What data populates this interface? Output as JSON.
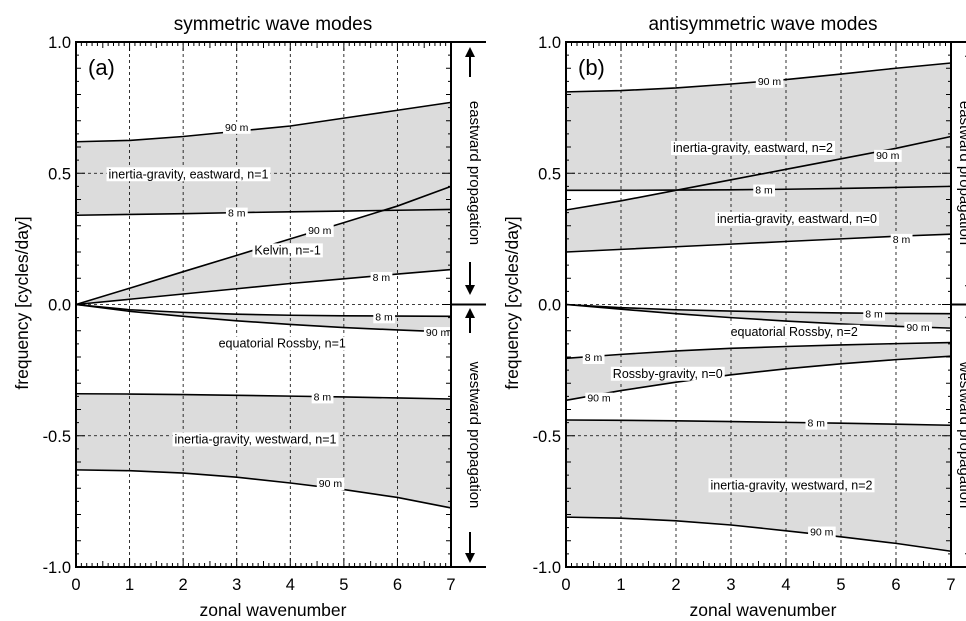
{
  "chart_data": [
    {
      "type": "line",
      "title": "symmetric wave modes",
      "panel_label": "(a)",
      "xlabel": "zonal wavenumber",
      "ylabel": "frequency [cycles/day]",
      "xlim": [
        0,
        7
      ],
      "ylim": [
        -1.0,
        1.0
      ],
      "x_ticks": [
        "0",
        "1",
        "2",
        "3",
        "4",
        "5",
        "6",
        "7"
      ],
      "y_ticks": [
        "1.0",
        "0.5",
        "0.0",
        "-0.5",
        "-1.0"
      ],
      "grid": "dashed",
      "side_labels": {
        "top": "eastward propagation",
        "bottom": "westward propagation"
      },
      "bands": [
        {
          "label": "inertia-gravity, eastward, n=1",
          "label_at": [
            2.1,
            0.5
          ],
          "upper": {
            "label": "90 m",
            "label_at": [
              3.0,
              0.677
            ],
            "x": [
              0,
              1,
              2,
              3,
              4,
              5,
              6,
              7
            ],
            "y": [
              0.62,
              0.625,
              0.64,
              0.66,
              0.68,
              0.71,
              0.74,
              0.77
            ]
          },
          "lower": {
            "label": "8 m",
            "label_at": [
              3.0,
              0.35
            ],
            "x": [
              0,
              1,
              2,
              3,
              4,
              5,
              6,
              7
            ],
            "y": [
              0.34,
              0.343,
              0.346,
              0.35,
              0.353,
              0.356,
              0.359,
              0.362
            ]
          }
        },
        {
          "label": "Kelvin, n=-1",
          "label_at": [
            3.95,
            0.21
          ],
          "upper": {
            "label": "90 m",
            "label_at": [
              4.55,
              0.284
            ],
            "x": [
              0,
              1,
              2,
              3,
              4,
              5,
              6,
              7
            ],
            "y": [
              0,
              0.062,
              0.125,
              0.187,
              0.25,
              0.312,
              0.375,
              0.45
            ]
          },
          "lower": {
            "label": "8 m",
            "label_at": [
              5.7,
              0.105
            ],
            "x": [
              0,
              1,
              2,
              3,
              4,
              5,
              6,
              7
            ],
            "y": [
              0,
              0.02,
              0.04,
              0.06,
              0.08,
              0.098,
              0.116,
              0.133
            ]
          }
        },
        {
          "label": "equatorial Rossby, n=1",
          "label_at": [
            3.85,
            -0.145
          ],
          "upper": {
            "label": "8 m",
            "label_at": [
              5.75,
              -0.045
            ],
            "x": [
              0,
              1,
              2,
              3,
              4,
              5,
              6,
              7
            ],
            "y": [
              0,
              -0.02,
              -0.03,
              -0.037,
              -0.041,
              -0.043,
              -0.044,
              -0.045
            ]
          },
          "lower": {
            "label": "90 m",
            "label_at": [
              6.75,
              -0.105
            ],
            "x": [
              0,
              1,
              2,
              3,
              4,
              5,
              6,
              7
            ],
            "y": [
              0,
              -0.026,
              -0.045,
              -0.062,
              -0.076,
              -0.088,
              -0.097,
              -0.105
            ]
          }
        },
        {
          "label": "inertia-gravity, westward, n=1",
          "label_at": [
            3.35,
            -0.51
          ],
          "upper": {
            "label": "8 m",
            "label_at": [
              4.6,
              -0.35
            ],
            "x": [
              0,
              1,
              2,
              3,
              4,
              5,
              6,
              7
            ],
            "y": [
              -0.34,
              -0.341,
              -0.343,
              -0.346,
              -0.349,
              -0.352,
              -0.356,
              -0.36
            ]
          },
          "lower": {
            "label": "90 m",
            "label_at": [
              4.75,
              -0.68
            ],
            "x": [
              0,
              1,
              2,
              3,
              4,
              5,
              6,
              7
            ],
            "y": [
              -0.63,
              -0.633,
              -0.642,
              -0.658,
              -0.68,
              -0.705,
              -0.735,
              -0.775
            ]
          }
        }
      ]
    },
    {
      "type": "line",
      "title": "antisymmetric wave modes",
      "panel_label": "(b)",
      "xlabel": "zonal wavenumber",
      "ylabel": "frequency [cycles/day]",
      "xlim": [
        0,
        7
      ],
      "ylim": [
        -1.0,
        1.0
      ],
      "x_ticks": [
        "0",
        "1",
        "2",
        "3",
        "4",
        "5",
        "6",
        "7"
      ],
      "y_ticks": [
        "1.0",
        "0.5",
        "0.0",
        "-0.5",
        "-1.0"
      ],
      "grid": "dashed",
      "side_labels": {
        "top": "eastward propagation",
        "bottom": "westward propagation"
      },
      "bands": [
        {
          "label": "inertia-gravity, eastward, n=2",
          "label_at": [
            3.4,
            0.6
          ],
          "upper": {
            "label": "90 m",
            "label_at": [
              3.7,
              0.852
            ],
            "x": [
              0,
              1,
              2,
              3,
              4,
              5,
              6,
              7
            ],
            "y": [
              0.81,
              0.815,
              0.825,
              0.84,
              0.857,
              0.878,
              0.9,
              0.92
            ]
          },
          "lower": {
            "label": "8 m",
            "label_at": [
              3.6,
              0.438
            ],
            "x": [
              0,
              1,
              2,
              3,
              4,
              5,
              6,
              7
            ],
            "y": [
              0.435,
              0.435,
              0.436,
              0.437,
              0.439,
              0.442,
              0.446,
              0.45
            ]
          }
        },
        {
          "label": "inertia-gravity, eastward, n=0",
          "label_at": [
            4.2,
            0.33
          ],
          "upper": {
            "label": "90 m",
            "label_at": [
              5.85,
              0.57
            ],
            "x": [
              0,
              1,
              2,
              3,
              4,
              5,
              6,
              7
            ],
            "y": [
              0.36,
              0.395,
              0.435,
              0.475,
              0.515,
              0.555,
              0.595,
              0.64
            ]
          },
          "lower": {
            "label": "8 m",
            "label_at": [
              6.1,
              0.25
            ],
            "x": [
              0,
              1,
              2,
              3,
              4,
              5,
              6,
              7
            ],
            "y": [
              0.2,
              0.21,
              0.22,
              0.23,
              0.24,
              0.25,
              0.26,
              0.268
            ]
          }
        },
        {
          "label": "equatorial Rossby, n=2",
          "label_at": [
            4.15,
            -0.1
          ],
          "upper": {
            "label": "8 m",
            "label_at": [
              5.6,
              -0.035
            ],
            "x": [
              0,
              1,
              2,
              3,
              4,
              5,
              6,
              7
            ],
            "y": [
              0,
              -0.012,
              -0.02,
              -0.025,
              -0.029,
              -0.032,
              -0.034,
              -0.035
            ]
          },
          "lower": {
            "label": "90 m",
            "label_at": [
              6.4,
              -0.085
            ],
            "x": [
              0,
              1,
              2,
              3,
              4,
              5,
              6,
              7
            ],
            "y": [
              0,
              -0.018,
              -0.035,
              -0.05,
              -0.063,
              -0.074,
              -0.083,
              -0.09
            ]
          }
        },
        {
          "label": "Rossby-gravity, n=0",
          "label_at": [
            1.85,
            -0.26
          ],
          "upper": {
            "label": "8 m",
            "label_at": [
              0.5,
              -0.2
            ],
            "x": [
              0,
              1,
              2,
              3,
              4,
              5,
              6,
              7
            ],
            "y": [
              -0.205,
              -0.19,
              -0.177,
              -0.167,
              -0.16,
              -0.154,
              -0.149,
              -0.145
            ]
          },
          "lower": {
            "label": "90 m",
            "label_at": [
              0.6,
              -0.355
            ],
            "x": [
              0,
              1,
              2,
              3,
              4,
              5,
              6,
              7
            ],
            "y": [
              -0.365,
              -0.328,
              -0.296,
              -0.268,
              -0.245,
              -0.226,
              -0.21,
              -0.197
            ]
          }
        },
        {
          "label": "inertia-gravity, westward, n=2",
          "label_at": [
            4.1,
            -0.685
          ],
          "upper": {
            "label": "8 m",
            "label_at": [
              4.55,
              -0.45
            ],
            "x": [
              0,
              1,
              2,
              3,
              4,
              5,
              6,
              7
            ],
            "y": [
              -0.44,
              -0.441,
              -0.443,
              -0.446,
              -0.449,
              -0.452,
              -0.456,
              -0.46
            ]
          },
          "lower": {
            "label": "90 m",
            "label_at": [
              4.65,
              -0.865
            ],
            "x": [
              0,
              1,
              2,
              3,
              4,
              5,
              6,
              7
            ],
            "y": [
              -0.81,
              -0.814,
              -0.824,
              -0.84,
              -0.862,
              -0.885,
              -0.91,
              -0.94
            ]
          }
        }
      ]
    }
  ]
}
